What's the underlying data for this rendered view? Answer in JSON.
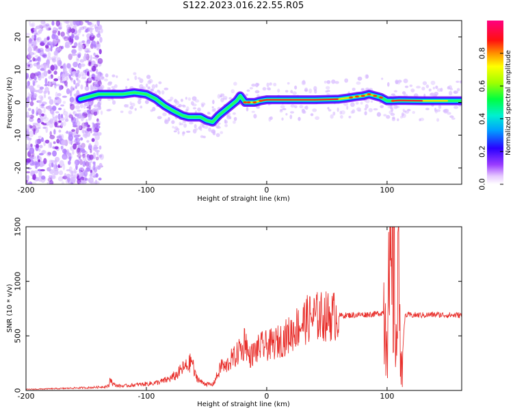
{
  "page_title": "S122.2023.016.22.55.R05",
  "colors": {
    "snr_line": "#e8302c",
    "ridge_core": "#ff2020",
    "ridge_halo": "#00e0ff",
    "cloud": "#8a2be2",
    "cloud_light": "#d6b8ff"
  },
  "chart_data": [
    {
      "type": "heatmap",
      "title": "S122.2023.016.22.55.R05",
      "xlabel": "Height of straight line (km)",
      "ylabel": "Frequency (Hz)",
      "xlim": [
        -200,
        162
      ],
      "ylim": [
        -25,
        25
      ],
      "x_ticks": [
        -200,
        -100,
        0,
        100
      ],
      "x_tick_labels": [
        "-200",
        "-100",
        "0",
        "100"
      ],
      "y_ticks": [
        -20,
        -10,
        0,
        10,
        20
      ],
      "y_tick_labels": [
        "-20",
        "-10",
        "0",
        "10",
        "20"
      ],
      "colorbar": {
        "label": "Normalized spectral amplitude",
        "range": [
          0,
          1
        ],
        "ticks": [
          0.0,
          0.2,
          0.4,
          0.6,
          0.8
        ],
        "tick_labels": [
          "0.0",
          "0.2",
          "0.4",
          "0.6",
          "0.8"
        ],
        "colormap": "rainbow (white-violet-blue-cyan-green-yellow-red-magenta)"
      },
      "noise_region_x": [
        -200,
        -137
      ],
      "ridge": {
        "x": [
          -155,
          -140,
          -130,
          -120,
          -110,
          -100,
          -92,
          -85,
          -78,
          -70,
          -65,
          -60,
          -55,
          -50,
          -45,
          -40,
          -35,
          -30,
          -25,
          -22,
          -18,
          -15,
          -10,
          -5,
          0,
          20,
          40,
          60,
          70,
          75,
          80,
          85,
          90,
          95,
          100,
          105,
          110,
          130,
          150,
          162
        ],
        "y": [
          1.0,
          2.5,
          2.5,
          2.5,
          3.0,
          2.5,
          1.0,
          -1.0,
          -2.5,
          -4.0,
          -4.5,
          -4.5,
          -4.5,
          -5.5,
          -6.0,
          -4.0,
          -2.5,
          -1.0,
          0.5,
          2.0,
          0.0,
          0.0,
          0.0,
          0.5,
          0.8,
          0.8,
          0.8,
          1.0,
          1.5,
          1.8,
          2.0,
          2.5,
          2.0,
          1.5,
          0.5,
          0.5,
          0.6,
          0.5,
          0.5,
          0.5
        ],
        "amplitude": [
          0.3,
          0.35,
          0.35,
          0.4,
          0.45,
          0.35,
          0.3,
          0.25,
          0.3,
          0.3,
          0.35,
          0.45,
          0.45,
          0.4,
          0.45,
          0.35,
          0.35,
          0.35,
          0.35,
          0.4,
          0.8,
          0.85,
          0.8,
          0.9,
          0.95,
          0.98,
          0.98,
          0.95,
          0.75,
          0.75,
          0.75,
          0.8,
          0.6,
          0.6,
          0.5,
          0.85,
          0.98,
          0.98,
          0.5,
          0.45
        ]
      }
    },
    {
      "type": "line",
      "xlabel": "Height of straight line (km)",
      "ylabel": "SNR (10 * v/v)",
      "xlim": [
        -200,
        162
      ],
      "ylim": [
        0,
        1500
      ],
      "x_ticks": [
        -200,
        -100,
        0,
        100
      ],
      "x_tick_labels": [
        "-200",
        "-100",
        "0",
        "100"
      ],
      "y_ticks": [
        0,
        500,
        1000,
        1500
      ],
      "y_tick_labels": [
        "0",
        "500",
        "1000",
        "1500"
      ],
      "series": [
        {
          "x": [
            -200,
            -190,
            -180,
            -170,
            -160,
            -150,
            -140,
            -131,
            -130,
            -128,
            -125,
            -120,
            -110,
            -100,
            -95,
            -90,
            -85,
            -80,
            -75,
            -70,
            -65,
            -62,
            -60,
            -55,
            -50,
            -45,
            -40,
            -37,
            -35,
            -30,
            -25,
            -22,
            -20,
            -18,
            -15,
            -10,
            -5,
            0,
            5,
            10,
            15,
            20,
            25,
            30,
            35,
            40,
            50,
            60,
            70,
            80,
            90,
            95,
            100,
            103,
            106,
            108,
            110,
            112,
            115,
            120,
            130,
            140,
            150,
            162
          ],
          "y": [
            10,
            12,
            15,
            18,
            22,
            25,
            30,
            40,
            120,
            60,
            45,
            40,
            50,
            60,
            65,
            75,
            90,
            110,
            140,
            200,
            230,
            280,
            150,
            80,
            60,
            50,
            160,
            250,
            200,
            280,
            320,
            400,
            350,
            500,
            300,
            350,
            400,
            410,
            420,
            450,
            480,
            520,
            580,
            620,
            660,
            675,
            680,
            685,
            690,
            695,
            700,
            710,
            730,
            900,
            1050,
            400,
            1200,
            200,
            690,
            690,
            690,
            695,
            690,
            690
          ]
        }
      ]
    }
  ]
}
